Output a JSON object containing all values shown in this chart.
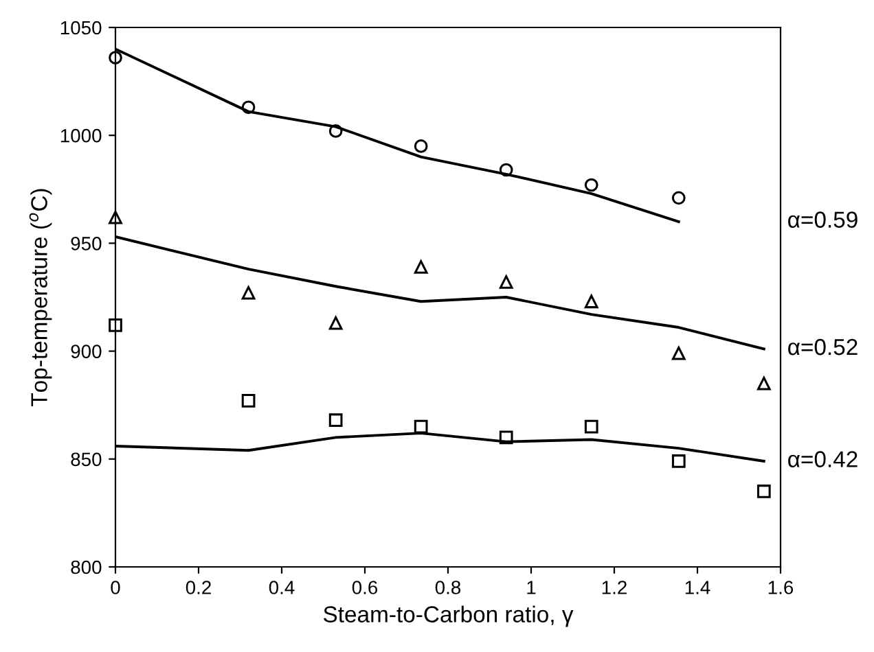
{
  "chart_data": {
    "type": "scatter",
    "xlabel": "Steam-to-Carbon ratio, γ",
    "ylabel": "Top-temperature ($^{o}$C)",
    "xlim": [
      0,
      1.6
    ],
    "xticks": [
      0,
      0.2,
      0.4,
      0.6,
      0.8,
      1,
      1.2,
      1.4,
      1.6
    ],
    "ylim": [
      800,
      1050
    ],
    "yticks": [
      800,
      850,
      900,
      950,
      1000,
      1050
    ],
    "grid": false,
    "legend": false,
    "series": [
      {
        "marker": "circle",
        "color": "#000000",
        "x": [
          0,
          0.32,
          0.53,
          0.735,
          0.94,
          1.145,
          1.355
        ],
        "values": [
          1036,
          1013,
          1002,
          995,
          984,
          977,
          971
        ]
      },
      {
        "type": "line",
        "name": "α=0.59",
        "marker": "none",
        "color": "#000000",
        "x": [
          0,
          0.32,
          0.53,
          0.735,
          0.94,
          1.145,
          1.355
        ],
        "values": [
          1040,
          1011,
          1004,
          990,
          982,
          973,
          960
        ]
      },
      {
        "marker": "triangle",
        "color": "#000000",
        "x": [
          0,
          0.32,
          0.53,
          0.735,
          0.94,
          1.145,
          1.355,
          1.56
        ],
        "values": [
          962,
          927,
          913,
          939,
          932,
          923,
          899,
          885
        ]
      },
      {
        "type": "line",
        "name": "α=0.52",
        "marker": "none",
        "color": "#000000",
        "x": [
          0,
          0.32,
          0.53,
          0.735,
          0.94,
          1.145,
          1.355,
          1.56
        ],
        "values": [
          953,
          938,
          930,
          923,
          925,
          917,
          911,
          901
        ]
      },
      {
        "marker": "square",
        "color": "#000000",
        "x": [
          0,
          0.32,
          0.53,
          0.735,
          0.94,
          1.145,
          1.355,
          1.56
        ],
        "values": [
          912,
          877,
          868,
          865,
          860,
          865,
          849,
          835
        ]
      },
      {
        "type": "line",
        "name": "α=0.42",
        "marker": "none",
        "color": "#000000",
        "x": [
          0,
          0.32,
          0.53,
          0.735,
          0.94,
          1.145,
          1.355,
          1.56
        ],
        "values": [
          856,
          854,
          860,
          862,
          858,
          859,
          855,
          849
        ]
      }
    ]
  }
}
